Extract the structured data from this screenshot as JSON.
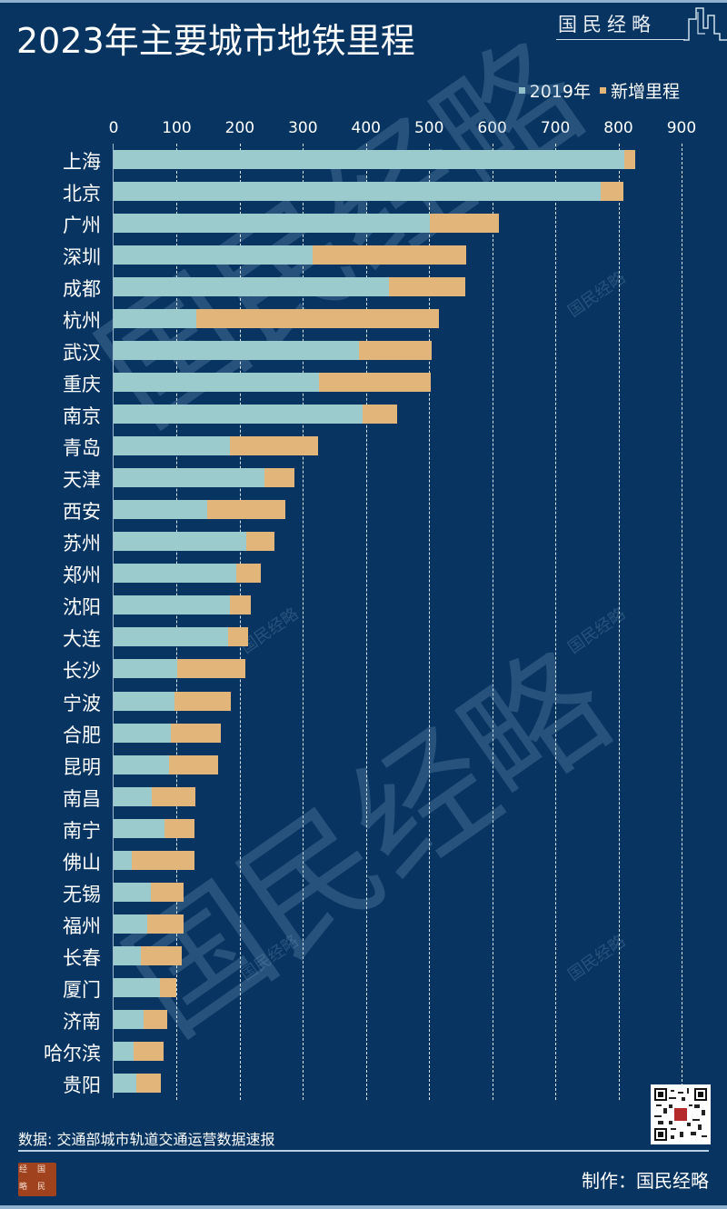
{
  "header": {
    "title": "2023年主要城市地铁里程",
    "brand": "国民经略"
  },
  "legend": {
    "items": [
      {
        "label": "2019年",
        "color": "#9ccbcd"
      },
      {
        "label": "新增里程",
        "color": "#e2b67b"
      }
    ]
  },
  "footer": {
    "source": "数据: 交通部城市轨道交通运营数据速报",
    "maker": "制作：国民经略",
    "seal": [
      "经",
      "国",
      "略",
      "民"
    ]
  },
  "colors": {
    "background": "#073461",
    "series_2019": "#9ccbcd",
    "series_new": "#e2b67b"
  },
  "chart_data": {
    "type": "bar",
    "orientation": "horizontal",
    "stacked": true,
    "title": "2023年主要城市地铁里程",
    "xlabel": "",
    "ylabel": "",
    "xlim": [
      0,
      900
    ],
    "xticks": [
      0,
      100,
      200,
      300,
      400,
      500,
      600,
      700,
      800,
      900
    ],
    "grid": "vertical dashed",
    "legend_position": "top-right",
    "categories": [
      "上海",
      "北京",
      "广州",
      "深圳",
      "成都",
      "杭州",
      "武汉",
      "重庆",
      "南京",
      "青岛",
      "天津",
      "西安",
      "苏州",
      "郑州",
      "沈阳",
      "大连",
      "长沙",
      "宁波",
      "合肥",
      "昆明",
      "南昌",
      "南宁",
      "佛山",
      "无锡",
      "福州",
      "长春",
      "厦门",
      "济南",
      "哈尔滨",
      "贵阳"
    ],
    "series": [
      {
        "name": "2019年",
        "values": [
          810,
          772,
          501,
          316,
          436,
          131,
          389,
          326,
          394,
          184,
          239,
          149,
          210,
          195,
          185,
          182,
          101,
          97,
          91,
          88,
          61,
          81,
          29,
          59,
          53,
          43,
          73,
          48,
          31,
          36
        ]
      },
      {
        "name": "新增里程",
        "values": [
          16,
          36,
          110,
          243,
          122,
          385,
          115,
          176,
          55,
          140,
          47,
          123,
          45,
          38,
          33,
          31,
          108,
          89,
          79,
          78,
          68,
          47,
          99,
          52,
          58,
          65,
          26,
          37,
          48,
          39
        ]
      }
    ],
    "totals_2023": [
      826,
      808,
      611,
      559,
      558,
      516,
      504,
      502,
      449,
      324,
      286,
      272,
      255,
      233,
      218,
      213,
      209,
      186,
      170,
      166,
      129,
      128,
      128,
      111,
      111,
      108,
      99,
      85,
      79,
      75
    ]
  }
}
